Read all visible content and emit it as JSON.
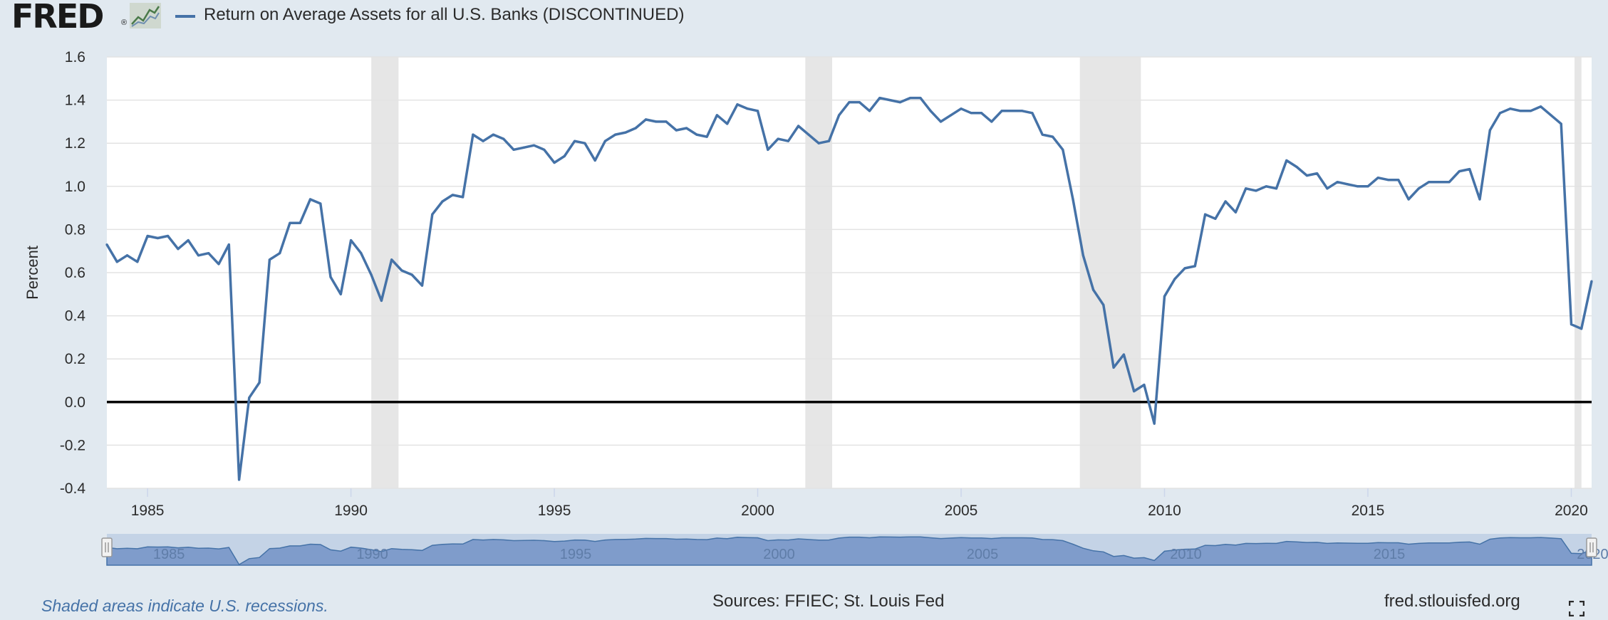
{
  "header": {
    "logo_text": "FRED",
    "logo_mark": "®",
    "series_label": "Return on Average Assets for all U.S. Banks (DISCONTINUED)",
    "series_color": "#4572a7"
  },
  "footer": {
    "note": "Shaded areas indicate U.S. recessions.",
    "sources": "Sources: FFIEC; St. Louis Fed",
    "site": "fred.stlouisfed.org"
  },
  "chart_data": {
    "type": "line",
    "title": "",
    "xlabel": "",
    "ylabel": "Percent",
    "ylim": [
      -0.4,
      1.6
    ],
    "yticks": [
      -0.4,
      -0.2,
      0.0,
      0.2,
      0.4,
      0.6,
      0.8,
      1.0,
      1.2,
      1.4,
      1.6
    ],
    "ytick_labels": [
      "-0.4",
      "-0.2",
      "0.0",
      "0.2",
      "0.4",
      "0.6",
      "0.8",
      "1.0",
      "1.2",
      "1.4",
      "1.6"
    ],
    "xlim": [
      1984.0,
      2020.5
    ],
    "xticks": [
      1985,
      1990,
      1995,
      2000,
      2005,
      2010,
      2015,
      2020
    ],
    "xtick_labels": [
      "1985",
      "1990",
      "1995",
      "2000",
      "2005",
      "2010",
      "2015",
      "2020"
    ],
    "grid": true,
    "zero_line": true,
    "recession_color": "#e6e6e6",
    "recessions": [
      [
        1990.5,
        1991.17
      ],
      [
        2001.17,
        2001.83
      ],
      [
        2007.92,
        2009.42
      ],
      [
        2020.08,
        2020.25
      ]
    ],
    "series": [
      {
        "name": "Return on Average Assets for all U.S. Banks (DISCONTINUED)",
        "color": "#4572a7",
        "x": [
          1984.0,
          1984.25,
          1984.5,
          1984.75,
          1985.0,
          1985.25,
          1985.5,
          1985.75,
          1986.0,
          1986.25,
          1986.5,
          1986.75,
          1987.0,
          1987.25,
          1987.5,
          1987.75,
          1988.0,
          1988.25,
          1988.5,
          1988.75,
          1989.0,
          1989.25,
          1989.5,
          1989.75,
          1990.0,
          1990.25,
          1990.5,
          1990.75,
          1991.0,
          1991.25,
          1991.5,
          1991.75,
          1992.0,
          1992.25,
          1992.5,
          1992.75,
          1993.0,
          1993.25,
          1993.5,
          1993.75,
          1994.0,
          1994.25,
          1994.5,
          1994.75,
          1995.0,
          1995.25,
          1995.5,
          1995.75,
          1996.0,
          1996.25,
          1996.5,
          1996.75,
          1997.0,
          1997.25,
          1997.5,
          1997.75,
          1998.0,
          1998.25,
          1998.5,
          1998.75,
          1999.0,
          1999.25,
          1999.5,
          1999.75,
          2000.0,
          2000.25,
          2000.5,
          2000.75,
          2001.0,
          2001.25,
          2001.5,
          2001.75,
          2002.0,
          2002.25,
          2002.5,
          2002.75,
          2003.0,
          2003.25,
          2003.5,
          2003.75,
          2004.0,
          2004.25,
          2004.5,
          2004.75,
          2005.0,
          2005.25,
          2005.5,
          2005.75,
          2006.0,
          2006.25,
          2006.5,
          2006.75,
          2007.0,
          2007.25,
          2007.5,
          2007.75,
          2008.0,
          2008.25,
          2008.5,
          2008.75,
          2009.0,
          2009.25,
          2009.5,
          2009.75,
          2010.0,
          2010.25,
          2010.5,
          2010.75,
          2011.0,
          2011.25,
          2011.5,
          2011.75,
          2012.0,
          2012.25,
          2012.5,
          2012.75,
          2013.0,
          2013.25,
          2013.5,
          2013.75,
          2014.0,
          2014.25,
          2014.5,
          2014.75,
          2015.0,
          2015.25,
          2015.5,
          2015.75,
          2016.0,
          2016.25,
          2016.5,
          2016.75,
          2017.0,
          2017.25,
          2017.5,
          2017.75,
          2018.0,
          2018.25,
          2018.5,
          2018.75,
          2019.0,
          2019.25,
          2019.5,
          2019.75,
          2020.0,
          2020.25,
          2020.5
        ],
        "values": [
          0.73,
          0.65,
          0.68,
          0.65,
          0.77,
          0.76,
          0.77,
          0.71,
          0.75,
          0.68,
          0.69,
          0.64,
          0.73,
          -0.36,
          0.02,
          0.09,
          0.66,
          0.69,
          0.83,
          0.83,
          0.94,
          0.92,
          0.58,
          0.5,
          0.75,
          0.69,
          0.59,
          0.47,
          0.66,
          0.61,
          0.59,
          0.54,
          0.87,
          0.93,
          0.96,
          0.95,
          1.24,
          1.21,
          1.24,
          1.22,
          1.17,
          1.18,
          1.19,
          1.17,
          1.11,
          1.14,
          1.21,
          1.2,
          1.12,
          1.21,
          1.24,
          1.25,
          1.27,
          1.31,
          1.3,
          1.3,
          1.26,
          1.27,
          1.24,
          1.23,
          1.33,
          1.29,
          1.38,
          1.36,
          1.35,
          1.17,
          1.22,
          1.21,
          1.28,
          1.24,
          1.2,
          1.21,
          1.33,
          1.39,
          1.39,
          1.35,
          1.41,
          1.4,
          1.39,
          1.41,
          1.41,
          1.35,
          1.3,
          1.33,
          1.36,
          1.34,
          1.34,
          1.3,
          1.35,
          1.35,
          1.35,
          1.34,
          1.24,
          1.23,
          1.17,
          0.94,
          0.68,
          0.52,
          0.45,
          0.16,
          0.22,
          0.05,
          0.08,
          -0.1,
          0.49,
          0.57,
          0.62,
          0.63,
          0.87,
          0.85,
          0.93,
          0.88,
          0.99,
          0.98,
          1.0,
          0.99,
          1.12,
          1.09,
          1.05,
          1.06,
          0.99,
          1.02,
          1.01,
          1.0,
          1.0,
          1.04,
          1.03,
          1.03,
          0.94,
          0.99,
          1.02,
          1.02,
          1.02,
          1.07,
          1.08,
          0.94,
          1.26,
          1.34,
          1.36,
          1.35,
          1.35,
          1.37,
          1.33,
          1.29,
          0.36,
          0.34,
          0.56
        ]
      }
    ]
  }
}
